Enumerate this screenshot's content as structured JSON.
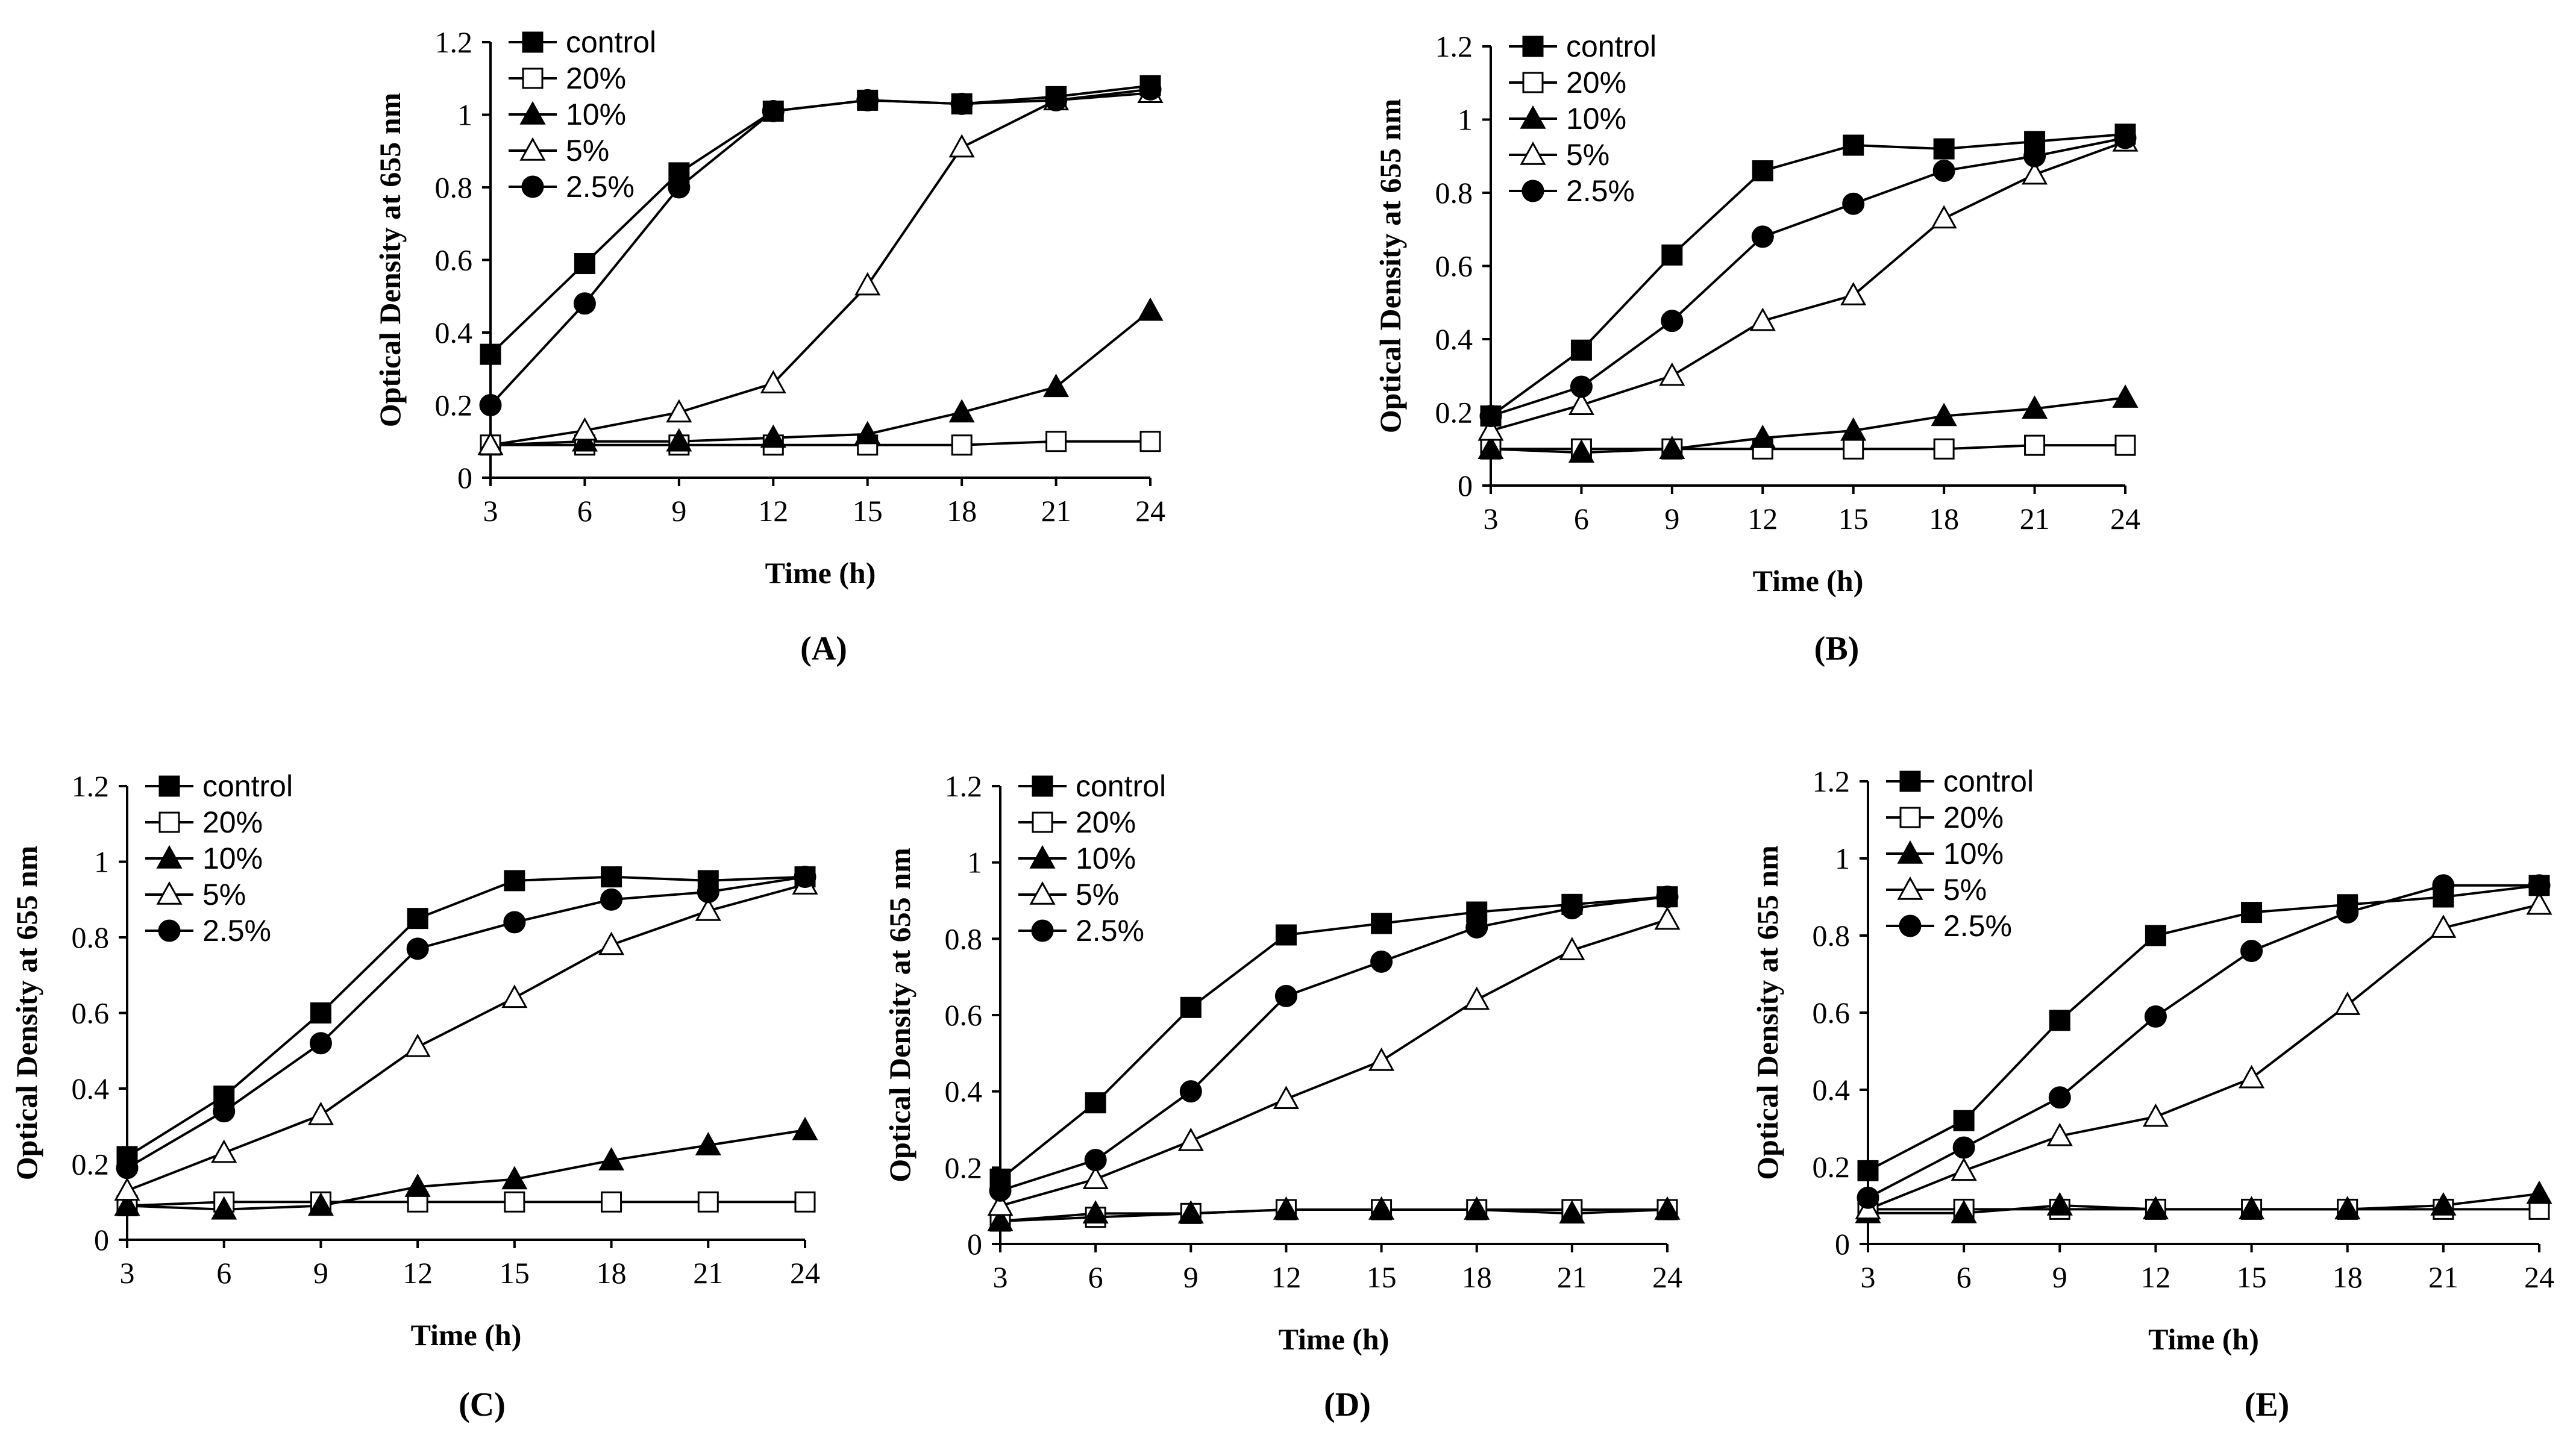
{
  "chart_data": [
    {
      "type": "line",
      "panel_label": "(A)",
      "xlabel": "Time (h)",
      "ylabel": "Optical Density at 655 nm",
      "x": [
        3,
        6,
        9,
        12,
        15,
        18,
        21,
        24
      ],
      "xticks": [
        "3",
        "6",
        "9",
        "12",
        "15",
        "18",
        "21",
        "24"
      ],
      "yticks": [
        "0",
        "0.2",
        "0.4",
        "0.6",
        "0.8",
        "1",
        "1.2"
      ],
      "ylim": [
        0,
        1.2
      ],
      "legend_position": "top-left",
      "series": [
        {
          "name": "control",
          "marker": "square-filled",
          "values": [
            0.34,
            0.59,
            0.84,
            1.01,
            1.04,
            1.03,
            1.05,
            1.08
          ]
        },
        {
          "name": "20%",
          "marker": "square-open",
          "values": [
            0.09,
            0.09,
            0.09,
            0.09,
            0.09,
            0.09,
            0.1,
            0.1
          ]
        },
        {
          "name": "10%",
          "marker": "triangle-filled",
          "values": [
            0.09,
            0.1,
            0.1,
            0.11,
            0.12,
            0.18,
            0.25,
            0.46
          ]
        },
        {
          "name": "5%",
          "marker": "triangle-open",
          "values": [
            0.09,
            0.13,
            0.18,
            0.26,
            0.53,
            0.91,
            1.04,
            1.06
          ]
        },
        {
          "name": "2.5%",
          "marker": "circle-filled",
          "values": [
            0.2,
            0.48,
            0.8,
            1.01,
            1.04,
            1.03,
            1.04,
            1.07
          ]
        }
      ]
    },
    {
      "type": "line",
      "panel_label": "(B)",
      "xlabel": "Time (h)",
      "ylabel": "Optical Density at 655 nm",
      "x": [
        3,
        6,
        9,
        12,
        15,
        18,
        21,
        24
      ],
      "xticks": [
        "3",
        "6",
        "9",
        "12",
        "15",
        "18",
        "21",
        "24"
      ],
      "yticks": [
        "0",
        "0.2",
        "0.4",
        "0.6",
        "0.8",
        "1",
        "1.2"
      ],
      "ylim": [
        0,
        1.2
      ],
      "legend_position": "top-left",
      "series": [
        {
          "name": "control",
          "marker": "square-filled",
          "values": [
            0.19,
            0.37,
            0.63,
            0.86,
            0.93,
            0.92,
            0.94,
            0.96
          ]
        },
        {
          "name": "20%",
          "marker": "square-open",
          "values": [
            0.1,
            0.1,
            0.1,
            0.1,
            0.1,
            0.1,
            0.11,
            0.11
          ]
        },
        {
          "name": "10%",
          "marker": "triangle-filled",
          "values": [
            0.1,
            0.09,
            0.1,
            0.13,
            0.15,
            0.19,
            0.21,
            0.24
          ]
        },
        {
          "name": "5%",
          "marker": "triangle-open",
          "values": [
            0.15,
            0.22,
            0.3,
            0.45,
            0.52,
            0.73,
            0.85,
            0.94
          ]
        },
        {
          "name": "2.5%",
          "marker": "circle-filled",
          "values": [
            0.19,
            0.27,
            0.45,
            0.68,
            0.77,
            0.86,
            0.9,
            0.95
          ]
        }
      ]
    },
    {
      "type": "line",
      "panel_label": "(C)",
      "xlabel": "Time (h)",
      "ylabel": "Optical Density at 655 nm",
      "x": [
        3,
        6,
        9,
        12,
        15,
        18,
        21,
        24
      ],
      "xticks": [
        "3",
        "6",
        "9",
        "12",
        "15",
        "18",
        "21",
        "24"
      ],
      "yticks": [
        "0",
        "0.2",
        "0.4",
        "0.6",
        "0.8",
        "1",
        "1.2"
      ],
      "ylim": [
        0,
        1.2
      ],
      "legend_position": "top-left",
      "series": [
        {
          "name": "control",
          "marker": "square-filled",
          "values": [
            0.22,
            0.38,
            0.6,
            0.85,
            0.95,
            0.96,
            0.95,
            0.96
          ]
        },
        {
          "name": "20%",
          "marker": "square-open",
          "values": [
            0.09,
            0.1,
            0.1,
            0.1,
            0.1,
            0.1,
            0.1,
            0.1
          ]
        },
        {
          "name": "10%",
          "marker": "triangle-filled",
          "values": [
            0.09,
            0.08,
            0.09,
            0.14,
            0.16,
            0.21,
            0.25,
            0.29
          ]
        },
        {
          "name": "5%",
          "marker": "triangle-open",
          "values": [
            0.13,
            0.23,
            0.33,
            0.51,
            0.64,
            0.78,
            0.87,
            0.94
          ]
        },
        {
          "name": "2.5%",
          "marker": "circle-filled",
          "values": [
            0.19,
            0.34,
            0.52,
            0.77,
            0.84,
            0.9,
            0.92,
            0.96
          ]
        }
      ]
    },
    {
      "type": "line",
      "panel_label": "(D)",
      "xlabel": "Time (h)",
      "ylabel": "Optical Density at 655 nm",
      "x": [
        3,
        6,
        9,
        12,
        15,
        18,
        21,
        24
      ],
      "xticks": [
        "3",
        "6",
        "9",
        "12",
        "15",
        "18",
        "21",
        "24"
      ],
      "yticks": [
        "0",
        "0.2",
        "0.4",
        "0.6",
        "0.8",
        "1",
        "1.2"
      ],
      "ylim": [
        0,
        1.2
      ],
      "legend_position": "top-left",
      "series": [
        {
          "name": "control",
          "marker": "square-filled",
          "values": [
            0.17,
            0.37,
            0.62,
            0.81,
            0.84,
            0.87,
            0.89,
            0.91
          ]
        },
        {
          "name": "20%",
          "marker": "square-open",
          "values": [
            0.06,
            0.07,
            0.08,
            0.09,
            0.09,
            0.09,
            0.09,
            0.09
          ]
        },
        {
          "name": "10%",
          "marker": "triangle-filled",
          "values": [
            0.06,
            0.08,
            0.08,
            0.09,
            0.09,
            0.09,
            0.08,
            0.09
          ]
        },
        {
          "name": "5%",
          "marker": "triangle-open",
          "values": [
            0.1,
            0.17,
            0.27,
            0.38,
            0.48,
            0.64,
            0.77,
            0.85
          ]
        },
        {
          "name": "2.5%",
          "marker": "circle-filled",
          "values": [
            0.14,
            0.22,
            0.4,
            0.65,
            0.74,
            0.83,
            0.88,
            0.91
          ]
        }
      ]
    },
    {
      "type": "line",
      "panel_label": "(E)",
      "xlabel": "Time (h)",
      "ylabel": "Optical Density at 655 nm",
      "x": [
        3,
        6,
        9,
        12,
        15,
        18,
        21,
        24
      ],
      "xticks": [
        "3",
        "6",
        "9",
        "12",
        "15",
        "18",
        "21",
        "24"
      ],
      "yticks": [
        "0",
        "0.2",
        "0.4",
        "0.6",
        "0.8",
        "1",
        "1.2"
      ],
      "ylim": [
        0,
        1.2
      ],
      "legend_position": "top-left",
      "series": [
        {
          "name": "control",
          "marker": "square-filled",
          "values": [
            0.19,
            0.32,
            0.58,
            0.8,
            0.86,
            0.88,
            0.9,
            0.93
          ]
        },
        {
          "name": "20%",
          "marker": "square-open",
          "values": [
            0.09,
            0.09,
            0.09,
            0.09,
            0.09,
            0.09,
            0.09,
            0.09
          ]
        },
        {
          "name": "10%",
          "marker": "triangle-filled",
          "values": [
            0.08,
            0.08,
            0.1,
            0.09,
            0.09,
            0.09,
            0.1,
            0.13
          ]
        },
        {
          "name": "5%",
          "marker": "triangle-open",
          "values": [
            0.09,
            0.19,
            0.28,
            0.33,
            0.43,
            0.62,
            0.82,
            0.88
          ]
        },
        {
          "name": "2.5%",
          "marker": "circle-filled",
          "values": [
            0.12,
            0.25,
            0.38,
            0.59,
            0.76,
            0.86,
            0.93,
            0.93
          ]
        }
      ]
    }
  ]
}
